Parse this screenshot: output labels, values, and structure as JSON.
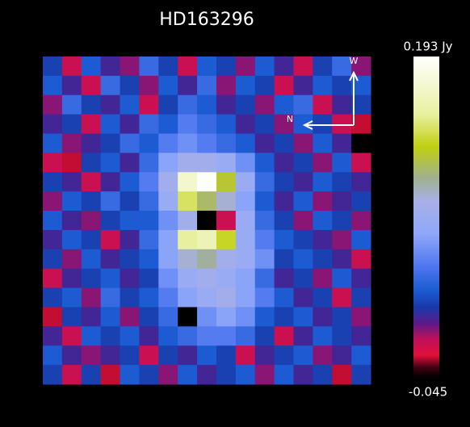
{
  "chart_data": {
    "type": "heatmap",
    "title": "HD163296",
    "zlim": [
      -0.045,
      0.193
    ],
    "colorbar_ticks": [
      {
        "value": 0.193,
        "label": "0.193 Jy"
      },
      -0.045
    ],
    "colorscale": [
      [
        0,
        "#000000"
      ],
      [
        0.03,
        "#3a0010"
      ],
      [
        0.07,
        "#e0103a"
      ],
      [
        0.12,
        "#c0105a"
      ],
      [
        0.17,
        "#5a1a8a"
      ],
      [
        0.22,
        "#1a3aaa"
      ],
      [
        0.27,
        "#1a5ad0"
      ],
      [
        0.35,
        "#5078f0"
      ],
      [
        0.45,
        "#90a8f8"
      ],
      [
        0.55,
        "#a8b0e8"
      ],
      [
        0.62,
        "#a0b090"
      ],
      [
        0.72,
        "#c0d010"
      ],
      [
        0.82,
        "#e8f0a0"
      ],
      [
        1,
        "#ffffff"
      ]
    ],
    "compass": {
      "up": "W",
      "left": "N"
    },
    "z": [
      [
        0.01,
        -0.02,
        0.02,
        0.0,
        -0.01,
        0.03,
        0.01,
        -0.02,
        0.02,
        0.01,
        -0.01,
        0.02,
        0.0,
        -0.02,
        0.01,
        0.03,
        -0.01
      ],
      [
        0.02,
        0.0,
        -0.02,
        0.03,
        0.01,
        -0.01,
        0.02,
        0.0,
        0.03,
        -0.01,
        0.02,
        0.01,
        -0.02,
        0.0,
        0.02,
        0.01,
        0.02
      ],
      [
        -0.01,
        0.03,
        0.01,
        0.0,
        0.02,
        -0.02,
        0.01,
        0.03,
        0.02,
        0.0,
        0.01,
        -0.01,
        0.02,
        0.03,
        -0.02,
        0.0,
        0.01
      ],
      [
        0.0,
        0.01,
        -0.02,
        0.02,
        0.0,
        0.03,
        0.02,
        0.04,
        0.03,
        0.02,
        0.0,
        0.01,
        -0.01,
        0.02,
        0.01,
        -0.02,
        -0.03
      ],
      [
        0.02,
        -0.01,
        0.0,
        0.01,
        0.03,
        0.02,
        0.04,
        0.05,
        0.04,
        0.03,
        0.02,
        0.0,
        0.01,
        -0.01,
        0.02,
        0.0,
        -0.045
      ],
      [
        -0.02,
        -0.03,
        0.01,
        0.02,
        0.0,
        0.03,
        0.06,
        0.08,
        0.08,
        0.07,
        0.05,
        0.02,
        0.0,
        0.01,
        -0.01,
        0.02,
        -0.02
      ],
      [
        0.01,
        0.0,
        -0.02,
        0.0,
        0.02,
        0.04,
        0.08,
        0.17,
        0.19,
        0.12,
        0.07,
        0.03,
        0.01,
        0.0,
        0.02,
        0.01,
        0.0
      ],
      [
        -0.01,
        0.02,
        0.01,
        0.03,
        0.01,
        0.03,
        0.07,
        0.14,
        0.11,
        0.09,
        0.06,
        0.02,
        0.0,
        0.02,
        -0.01,
        0.0,
        0.01
      ],
      [
        0.02,
        0.0,
        -0.01,
        0.01,
        0.02,
        0.02,
        0.05,
        0.08,
        -0.045,
        -0.02,
        0.07,
        0.03,
        0.01,
        -0.01,
        0.02,
        0.01,
        -0.01
      ],
      [
        0.0,
        0.02,
        0.01,
        -0.02,
        0.0,
        0.03,
        0.06,
        0.15,
        0.16,
        0.13,
        0.07,
        0.04,
        0.02,
        0.01,
        0.0,
        -0.01,
        0.02
      ],
      [
        0.01,
        -0.01,
        0.02,
        0.0,
        0.01,
        0.02,
        0.06,
        0.09,
        0.1,
        0.08,
        0.07,
        0.05,
        0.01,
        0.02,
        0.01,
        0.0,
        -0.02
      ],
      [
        -0.02,
        0.0,
        0.01,
        0.02,
        0.0,
        0.01,
        0.05,
        0.07,
        0.08,
        0.07,
        0.06,
        0.03,
        0.0,
        0.01,
        -0.01,
        0.02,
        0.0
      ],
      [
        0.01,
        0.02,
        -0.01,
        0.03,
        0.01,
        0.02,
        0.04,
        0.06,
        0.07,
        0.08,
        0.06,
        0.04,
        0.02,
        0.0,
        0.01,
        -0.02,
        0.01
      ],
      [
        -0.03,
        0.01,
        0.0,
        0.02,
        -0.01,
        0.01,
        0.03,
        -0.045,
        0.05,
        0.06,
        0.05,
        0.02,
        0.01,
        0.02,
        0.0,
        0.01,
        -0.01
      ],
      [
        0.0,
        -0.02,
        0.02,
        0.01,
        0.02,
        0.0,
        0.02,
        0.03,
        0.04,
        0.04,
        0.03,
        0.01,
        -0.02,
        0.0,
        0.02,
        0.01,
        0.0
      ],
      [
        0.02,
        0.0,
        -0.01,
        0.0,
        0.01,
        -0.02,
        0.01,
        0.0,
        0.02,
        0.01,
        -0.02,
        0.0,
        0.01,
        0.02,
        -0.01,
        0.0,
        0.02
      ],
      [
        0.01,
        -0.02,
        0.01,
        -0.03,
        0.02,
        0.01,
        -0.01,
        0.02,
        0.0,
        0.01,
        0.02,
        -0.01,
        0.02,
        0.0,
        0.01,
        -0.03,
        0.01
      ]
    ]
  }
}
